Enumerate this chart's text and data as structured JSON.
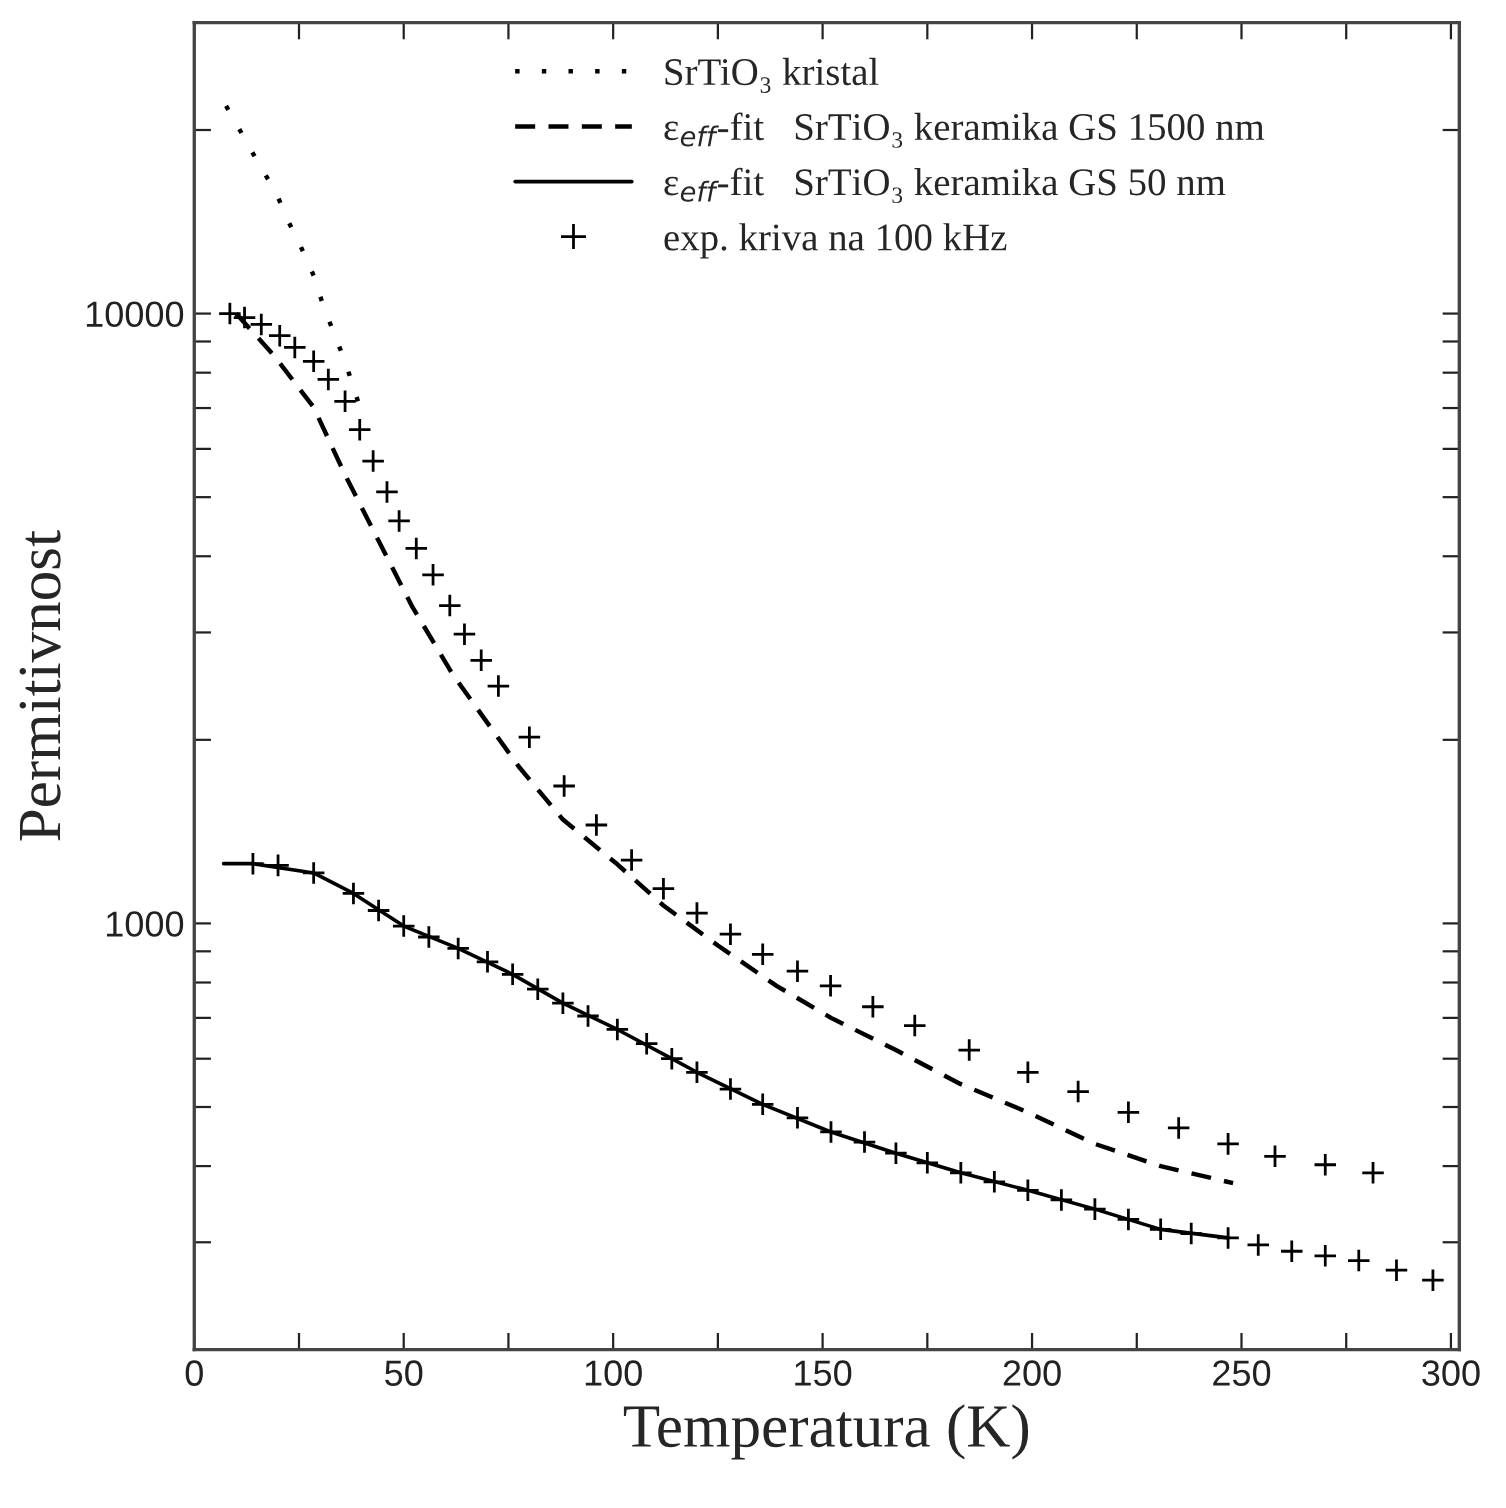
{
  "chart_data": {
    "type": "line",
    "xlabel": "Temperatura (K)",
    "ylabel": "Permitivnost",
    "log": "y",
    "xlim": [
      0,
      302
    ],
    "ylim": [
      200,
      30000
    ],
    "xticks": [
      0,
      {
        "value": 25,
        "label": null
      },
      50,
      {
        "value": 75,
        "label": null
      },
      100,
      {
        "value": 125,
        "label": null
      },
      150,
      {
        "value": 175,
        "label": null
      },
      200,
      {
        "value": 225,
        "label": null
      },
      250,
      {
        "value": 275,
        "label": null
      },
      300
    ],
    "yticks": [
      {
        "value": 200,
        "label": null
      },
      {
        "value": 300,
        "label": null
      },
      {
        "value": 400,
        "label": null
      },
      {
        "value": 500,
        "label": null
      },
      {
        "value": 600,
        "label": null
      },
      {
        "value": 700,
        "label": null
      },
      {
        "value": 800,
        "label": null
      },
      {
        "value": 900,
        "label": null
      },
      1000,
      {
        "value": 2000,
        "label": null
      },
      {
        "value": 3000,
        "label": null
      },
      {
        "value": 4000,
        "label": null
      },
      {
        "value": 5000,
        "label": null
      },
      {
        "value": 6000,
        "label": null
      },
      {
        "value": 7000,
        "label": null
      },
      {
        "value": 8000,
        "label": null
      },
      {
        "value": 9000,
        "label": null
      },
      10000,
      {
        "value": 20000,
        "label": null
      }
    ],
    "grid": false,
    "legend": "top",
    "series": [
      {
        "name": "SrTiO₃ kristal",
        "line_style": "dotted",
        "color": "#000000",
        "x": [
          7.6,
          11.4,
          15.2,
          19.5,
          22.3,
          25.6,
          28.5,
          30.8,
          33.2,
          36,
          38,
          40.3
        ],
        "values": [
          21900,
          19700,
          17700,
          15800,
          14240,
          12800,
          11540,
          10300,
          9340,
          8350,
          7570,
          6760
        ]
      },
      {
        "name": "ε$_{eff}$-fit   SrTiO₃ keramika GS 1500 nm",
        "line_style": "dashed",
        "color": "#000000",
        "x": [
          10,
          19,
          28.5,
          36,
          44,
          52,
          61.7,
          77.4,
          88,
          101,
          112,
          125,
          139,
          152,
          167.5,
          183,
          199,
          215,
          230.7,
          248
        ],
        "values": [
          10000,
          8540,
          7020,
          5440,
          4240,
          3310,
          2560,
          1810,
          1480,
          1250,
          1070,
          920,
          790,
          700,
          620,
          545,
          490,
          435,
          400,
          375
        ]
      },
      {
        "name": "ε$_{eff}$-fit   SrTiO₃ keramika GS 50 nm",
        "line_style": "solid",
        "color": "#000000",
        "x": [
          7,
          14,
          28.5,
          38,
          50,
          63,
          76,
          88,
          101,
          114,
          120,
          135.7,
          152,
          167.5,
          183,
          199,
          215,
          230.7,
          246.8
        ],
        "values": [
          1253,
          1253,
          1210,
          1120,
          990,
          910,
          825,
          740,
          670,
          600,
          570,
          505,
          455,
          420,
          390,
          365,
          340,
          315,
          305
        ]
      },
      {
        "name": "exp. kriva na 100 kHz",
        "type": "scatter",
        "marker": "cross",
        "color": "#000000",
        "x": [
          8.5,
          12,
          16,
          20.4,
          24,
          28.5,
          32,
          36,
          39.5,
          42.7,
          46,
          48.9,
          53,
          57,
          61,
          64.5,
          68.5,
          72.6,
          80,
          88.3,
          96,
          104.4,
          112,
          120,
          128,
          135.7,
          144,
          151.9,
          162,
          172,
          185,
          199,
          211,
          223,
          235,
          246.8,
          258,
          270,
          281.4
        ],
        "values": [
          10000,
          9850,
          9600,
          9200,
          8800,
          8350,
          7800,
          7180,
          6450,
          5730,
          5100,
          4570,
          4120,
          3730,
          3320,
          2980,
          2700,
          2450,
          2020,
          1680,
          1450,
          1270,
          1140,
          1040,
          960,
          890,
          835,
          790,
          730,
          680,
          620,
          570,
          530,
          490,
          462,
          435,
          415,
          402,
          390
        ]
      },
      {
        "type": "scatter",
        "marker": "cross",
        "color": "#000000",
        "x": [
          14,
          20,
          28.5,
          38,
          44,
          50,
          56,
          63,
          70,
          76,
          82,
          88,
          94,
          101,
          108,
          114,
          120,
          128,
          135.7,
          144,
          152,
          160,
          167.5,
          175,
          183,
          191,
          199,
          207,
          215,
          223,
          230.7,
          238,
          246.8,
          254,
          262,
          270,
          278,
          287,
          295.7
        ],
        "values": [
          1253,
          1245,
          1210,
          1120,
          1050,
          990,
          950,
          910,
          865,
          825,
          780,
          740,
          705,
          670,
          635,
          600,
          570,
          535,
          505,
          480,
          455,
          438,
          420,
          405,
          390,
          377,
          365,
          352,
          340,
          327,
          315,
          310,
          305,
          297,
          290,
          285,
          280,
          270,
          260
        ]
      }
    ]
  }
}
